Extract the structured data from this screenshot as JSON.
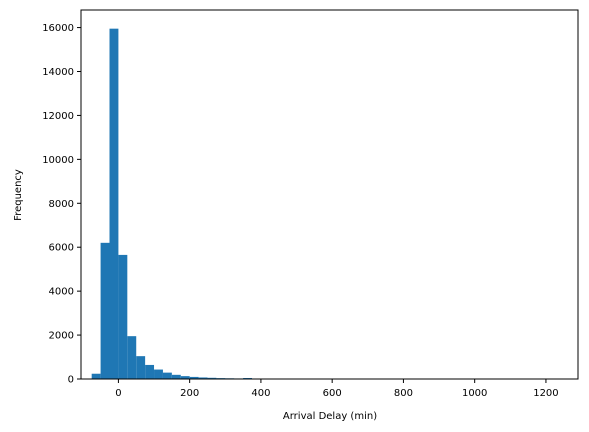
{
  "chart_data": {
    "type": "bar",
    "title": "",
    "xlabel": "Arrival Delay (min)",
    "ylabel": "Frequency",
    "xlim": [
      -105,
      1290
    ],
    "ylim": [
      0,
      16800
    ],
    "xticks": [
      0,
      200,
      400,
      600,
      800,
      1000,
      1200
    ],
    "yticks": [
      0,
      2000,
      4000,
      6000,
      8000,
      10000,
      12000,
      14000,
      16000
    ],
    "grid": false,
    "bin_edges": [
      -75,
      -50,
      -25,
      0,
      25,
      50,
      75,
      100,
      125,
      150,
      175,
      200,
      225,
      250,
      275,
      300,
      325,
      350,
      375,
      400,
      425,
      450,
      475,
      500,
      525,
      550,
      575,
      600,
      625,
      650,
      675,
      700,
      725,
      750,
      775,
      800,
      825,
      850,
      875,
      900,
      925,
      950,
      975,
      1000,
      1025,
      1050,
      1075,
      1100,
      1125,
      1150,
      1175,
      1200,
      1225,
      1250,
      1275
    ],
    "counts": [
      240,
      6200,
      15950,
      5650,
      1950,
      1040,
      640,
      430,
      290,
      190,
      130,
      95,
      70,
      55,
      40,
      32,
      25,
      45,
      18,
      12,
      10,
      8,
      6,
      5,
      4,
      4,
      3,
      3,
      2,
      2,
      2,
      2,
      1,
      1,
      1,
      1,
      1,
      1,
      1,
      1,
      1,
      1,
      1,
      1,
      1,
      1,
      1,
      1,
      1,
      1,
      1,
      1,
      1,
      1
    ],
    "bar_color": "#1f77b4"
  }
}
